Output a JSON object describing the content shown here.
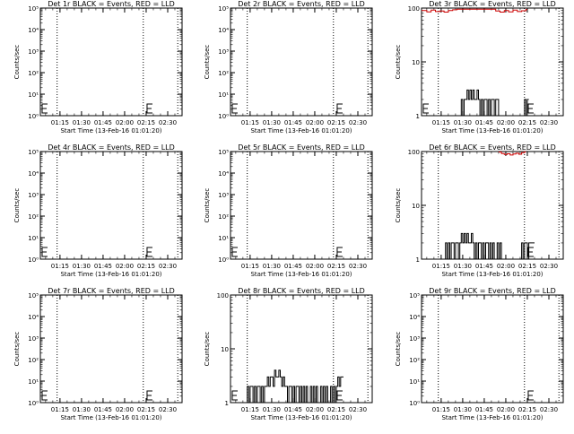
{
  "figure": {
    "xlabel": "Start Time (13-Feb-16 01:01:20)",
    "ylabel": "Counts/sec",
    "time_ticks": [
      "01:15",
      "01:30",
      "01:45",
      "02:00",
      "02:15",
      "02:30"
    ]
  },
  "chart_data": [
    {
      "type": "line",
      "title": "Det 1r BLACK = Events, RED = LLD",
      "scale": "log",
      "ylim": [
        1,
        100000
      ],
      "ytick_labels": [
        "10⁰",
        "10¹",
        "10²",
        "10³",
        "10⁴",
        "10⁵"
      ],
      "xlim": [
        "01:01:20",
        "02:40:00"
      ],
      "vlines": [
        "01:13",
        "02:13",
        "02:37"
      ],
      "e_markers": [
        "01:01:20",
        "02:15"
      ],
      "series": []
    },
    {
      "type": "line",
      "title": "Det 2r BLACK = Events, RED = LLD",
      "scale": "log",
      "ylim": [
        1,
        100000
      ],
      "ytick_labels": [
        "10⁰",
        "10¹",
        "10²",
        "10³",
        "10⁴",
        "10⁵"
      ],
      "xlim": [
        "01:01:20",
        "02:40:00"
      ],
      "vlines": [
        "01:13",
        "02:13",
        "02:37"
      ],
      "e_markers": [
        "01:01:20",
        "02:15"
      ],
      "series": []
    },
    {
      "type": "line",
      "title": "Det 3r BLACK = Events, RED = LLD",
      "scale": "log",
      "ylim": [
        1,
        100
      ],
      "ytick_labels": [
        "1",
        "10",
        "100"
      ],
      "xlim": [
        "01:01:20",
        "02:40:00"
      ],
      "vlines": [
        "01:13",
        "02:13",
        "02:37"
      ],
      "e_markers": [
        "01:01:20",
        "02:15"
      ],
      "series": [
        {
          "color": "#000000",
          "x": [
            "01:28",
            "01:29",
            "01:30",
            "01:31",
            "01:32",
            "01:33",
            "01:34",
            "01:35",
            "01:36",
            "01:37",
            "01:38",
            "01:39",
            "01:40",
            "01:41",
            "01:42",
            "01:43",
            "01:44",
            "01:45",
            "01:46",
            "01:47",
            "01:48",
            "01:49",
            "01:50",
            "01:51",
            "01:52",
            "01:53",
            "01:54",
            "01:55",
            "02:12",
            "02:13",
            "02:14",
            "02:15"
          ],
          "y": [
            1,
            2,
            1,
            2,
            2,
            3,
            2,
            3,
            2,
            3,
            2,
            2,
            3,
            2,
            1,
            2,
            1,
            2,
            2,
            1,
            2,
            1,
            2,
            2,
            1,
            2,
            2,
            1,
            1,
            2,
            1,
            2
          ]
        },
        {
          "color": "#cc0000",
          "x": [
            "01:01:20",
            "01:05",
            "01:08",
            "01:11",
            "01:14",
            "01:17",
            "01:20",
            "01:23",
            "01:26",
            "01:50",
            "01:53",
            "01:56",
            "01:59",
            "02:02",
            "02:05",
            "02:08",
            "02:11",
            "02:14"
          ],
          "y": [
            90,
            85,
            92,
            86,
            88,
            84,
            90,
            93,
            95,
            95,
            88,
            84,
            90,
            85,
            92,
            86,
            89,
            94
          ]
        }
      ]
    },
    {
      "type": "line",
      "title": "Det 4r BLACK = Events, RED = LLD",
      "scale": "log",
      "ylim": [
        1,
        100000
      ],
      "ytick_labels": [
        "10⁰",
        "10¹",
        "10²",
        "10³",
        "10⁴",
        "10⁵"
      ],
      "xlim": [
        "01:01:20",
        "02:40:00"
      ],
      "vlines": [
        "01:13",
        "02:13",
        "02:37"
      ],
      "e_markers": [
        "01:01:20",
        "02:15"
      ],
      "series": []
    },
    {
      "type": "line",
      "title": "Det 5r BLACK = Events, RED = LLD",
      "scale": "log",
      "ylim": [
        1,
        100000
      ],
      "ytick_labels": [
        "10⁰",
        "10¹",
        "10²",
        "10³",
        "10⁴",
        "10⁵"
      ],
      "xlim": [
        "01:01:20",
        "02:40:00"
      ],
      "vlines": [
        "01:13",
        "02:13",
        "02:37"
      ],
      "e_markers": [
        "01:01:20",
        "02:15"
      ],
      "series": []
    },
    {
      "type": "line",
      "title": "Det 6r BLACK = Events, RED = LLD",
      "scale": "log",
      "ylim": [
        1,
        100
      ],
      "ytick_labels": [
        "1",
        "10",
        "100"
      ],
      "xlim": [
        "01:01:20",
        "02:40:00"
      ],
      "vlines": [
        "01:13",
        "02:13",
        "02:37"
      ],
      "e_markers": [
        "02:15"
      ],
      "series": [
        {
          "color": "#000000",
          "x": [
            "01:17",
            "01:18",
            "01:19",
            "01:20",
            "01:21",
            "01:22",
            "01:23",
            "01:24",
            "01:25",
            "01:26",
            "01:27",
            "01:28",
            "01:29",
            "01:30",
            "01:31",
            "01:32",
            "01:33",
            "01:34",
            "01:35",
            "01:36",
            "01:37",
            "01:38",
            "01:39",
            "01:40",
            "01:41",
            "01:42",
            "01:43",
            "01:44",
            "01:45",
            "01:46",
            "01:47",
            "01:48",
            "01:49",
            "01:50",
            "01:51",
            "01:52",
            "01:53",
            "01:54",
            "01:55",
            "01:56",
            "01:57",
            "01:58",
            "02:10",
            "02:11",
            "02:12",
            "02:13",
            "02:14",
            "02:15",
            "02:16",
            "02:17",
            "02:18",
            "02:19"
          ],
          "y": [
            1,
            2,
            1,
            2,
            1,
            2,
            2,
            1,
            2,
            2,
            1,
            2,
            3,
            2,
            3,
            2,
            3,
            2,
            2,
            3,
            2,
            1,
            2,
            1,
            2,
            2,
            1,
            2,
            1,
            2,
            2,
            1,
            2,
            1,
            2,
            1,
            1,
            2,
            1,
            2,
            1,
            1,
            1,
            2,
            1,
            2,
            2,
            1,
            2,
            2,
            2,
            2
          ]
        },
        {
          "color": "#cc0000",
          "x": [
            "01:55",
            "01:57",
            "01:59",
            "02:01",
            "02:03",
            "02:05",
            "02:07",
            "02:09",
            "02:11",
            "02:13"
          ],
          "y": [
            98,
            92,
            88,
            91,
            86,
            90,
            93,
            89,
            95,
            99
          ]
        }
      ]
    },
    {
      "type": "line",
      "title": "Det 7r BLACK = Events, RED = LLD",
      "scale": "log",
      "ylim": [
        1,
        100000
      ],
      "ytick_labels": [
        "10⁰",
        "10¹",
        "10²",
        "10³",
        "10⁴",
        "10⁵"
      ],
      "xlim": [
        "01:01:20",
        "02:40:00"
      ],
      "vlines": [
        "01:13",
        "02:13",
        "02:37"
      ],
      "e_markers": [
        "01:01:20",
        "02:15"
      ],
      "series": []
    },
    {
      "type": "line",
      "title": "Det 8r BLACK = Events, RED = LLD",
      "scale": "log",
      "ylim": [
        1,
        100
      ],
      "ytick_labels": [
        "1",
        "10",
        "100"
      ],
      "xlim": [
        "01:01:20",
        "02:40:00"
      ],
      "vlines": [
        "01:13",
        "02:13",
        "02:37"
      ],
      "e_markers": [
        "01:01:20",
        "02:15"
      ],
      "series": [
        {
          "color": "#000000",
          "x": [
            "01:12",
            "01:13",
            "01:14",
            "01:15",
            "01:16",
            "01:17",
            "01:18",
            "01:19",
            "01:20",
            "01:21",
            "01:22",
            "01:23",
            "01:24",
            "01:25",
            "01:26",
            "01:27",
            "01:28",
            "01:29",
            "01:30",
            "01:31",
            "01:32",
            "01:33",
            "01:34",
            "01:35",
            "01:36",
            "01:37",
            "01:38",
            "01:39",
            "01:40",
            "01:41",
            "01:42",
            "01:43",
            "01:44",
            "01:45",
            "01:46",
            "01:47",
            "01:48",
            "01:49",
            "01:50",
            "01:51",
            "01:52",
            "01:53",
            "01:54",
            "01:55",
            "01:56",
            "01:57",
            "01:58",
            "01:59",
            "02:00",
            "02:01",
            "02:02",
            "02:03",
            "02:04",
            "02:05",
            "02:06",
            "02:07",
            "02:08",
            "02:09",
            "02:10",
            "02:11",
            "02:12",
            "02:13",
            "02:14",
            "02:15",
            "02:16",
            "02:17",
            "02:18",
            "02:19"
          ],
          "y": [
            1,
            2,
            1,
            2,
            2,
            1,
            2,
            1,
            2,
            2,
            1,
            2,
            1,
            2,
            2,
            3,
            2,
            3,
            3,
            2,
            4,
            3,
            3,
            4,
            3,
            2,
            3,
            2,
            2,
            1,
            2,
            2,
            1,
            2,
            1,
            2,
            2,
            1,
            2,
            1,
            2,
            1,
            2,
            1,
            1,
            2,
            1,
            2,
            1,
            2,
            1,
            1,
            2,
            1,
            2,
            1,
            2,
            1,
            1,
            2,
            1,
            2,
            1,
            2,
            3,
            2,
            3,
            3
          ]
        }
      ]
    },
    {
      "type": "line",
      "title": "Det 9r BLACK = Events, RED = LLD",
      "scale": "log",
      "ylim": [
        1,
        100000
      ],
      "ytick_labels": [
        "10⁰",
        "10¹",
        "10²",
        "10³",
        "10⁴",
        "10⁵"
      ],
      "xlim": [
        "01:01:20",
        "02:40:00"
      ],
      "vlines": [
        "01:13",
        "02:13",
        "02:37"
      ],
      "e_markers": [
        "02:15"
      ],
      "series": []
    }
  ]
}
